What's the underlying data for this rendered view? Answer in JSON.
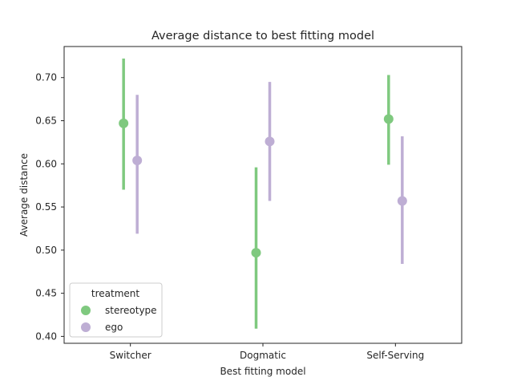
{
  "chart_data": {
    "type": "scatter",
    "title": "Average distance to best fitting model",
    "xlabel": "Best fitting model",
    "ylabel": "Average distance",
    "categories": [
      "Switcher",
      "Dogmatic",
      "Self-Serving"
    ],
    "ylim": [
      0.392,
      0.736
    ],
    "yticks": [
      0.4,
      0.45,
      0.5,
      0.55,
      0.6,
      0.65,
      0.7
    ],
    "ytick_labels": [
      "0.40",
      "0.45",
      "0.50",
      "0.55",
      "0.60",
      "0.65",
      "0.70"
    ],
    "grid": false,
    "legend": {
      "title": "treatment",
      "placement": "lower-left"
    },
    "series": [
      {
        "name": "stereotype",
        "color": "#7fc97f",
        "values": [
          0.647,
          0.497,
          0.652
        ],
        "ci_low": [
          0.57,
          0.409,
          0.599
        ],
        "ci_high": [
          0.722,
          0.596,
          0.703
        ]
      },
      {
        "name": "ego",
        "color": "#beaed4",
        "values": [
          0.604,
          0.626,
          0.557
        ],
        "ci_low": [
          0.519,
          0.557,
          0.484
        ],
        "ci_high": [
          0.68,
          0.695,
          0.632
        ]
      }
    ]
  }
}
